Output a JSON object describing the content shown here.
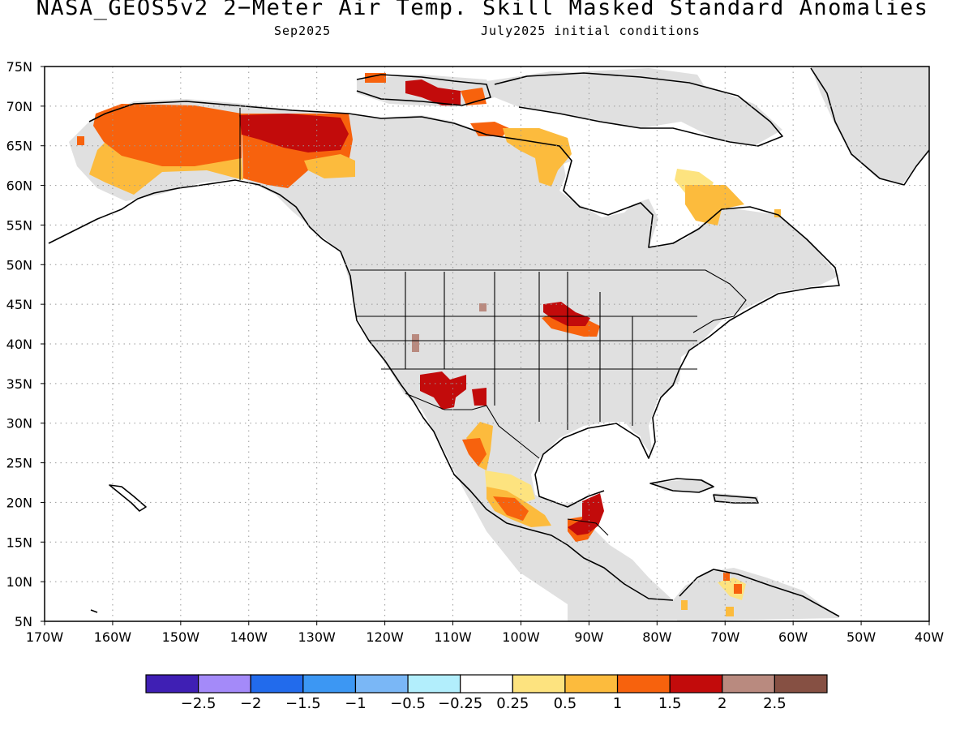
{
  "title": "NASA_GEOS5v2 2−Meter Air Temp. Skill Masked Standard Anomalies",
  "subtitle_left": "Sep2025",
  "subtitle_right": "July2025 initial conditions",
  "map": {
    "projection": "latitude-longitude",
    "lon_range": [
      -170,
      -40
    ],
    "lat_range": [
      5,
      75
    ],
    "lat_labels": [
      "5N",
      "10N",
      "15N",
      "20N",
      "25N",
      "30N",
      "35N",
      "40N",
      "45N",
      "50N",
      "55N",
      "60N",
      "65N",
      "70N",
      "75N"
    ],
    "lon_labels": [
      "170W",
      "160W",
      "150W",
      "140W",
      "130W",
      "120W",
      "110W",
      "100W",
      "90W",
      "80W",
      "70W",
      "60W",
      "50W",
      "40W"
    ],
    "grid": "dotted",
    "land_mask_color": "#e0e0e0",
    "regions": [
      {
        "name": "Alaska",
        "anomaly_class": "0.5 to 1.5"
      },
      {
        "name": "Yukon",
        "anomaly_class": "1.5 to 2"
      },
      {
        "name": "Arctic Archipelago",
        "anomaly_class": "1.5 to 2"
      },
      {
        "name": "Northern Hudson Bay",
        "anomaly_class": "0.5 to 1"
      },
      {
        "name": "Labrador",
        "anomaly_class": "0.25 to 1"
      },
      {
        "name": "Minnesota-Wisconsin",
        "anomaly_class": "1 to 2"
      },
      {
        "name": "Arizona-New Mexico",
        "anomaly_class": "1.5 to 2"
      },
      {
        "name": "Western Mexico",
        "anomaly_class": "0.5 to 1.5"
      },
      {
        "name": "Southern Mexico",
        "anomaly_class": "0.25 to 2"
      },
      {
        "name": "Yucatan-Guatemala",
        "anomaly_class": "1.5 to 2"
      },
      {
        "name": "Venezuela",
        "anomaly_class": "0.25 to 1.5"
      }
    ]
  },
  "colorbar": {
    "colors": [
      "#3f1fb4",
      "#a48af9",
      "#226bec",
      "#3c97f3",
      "#7ab7f6",
      "#b2eefc",
      "#ffffff",
      "#fde37f",
      "#fcbb3d",
      "#f7620d",
      "#c20b0b",
      "#b98a7f",
      "#865043"
    ],
    "labels": [
      "−2.5",
      "−2",
      "−1.5",
      "−1",
      "−0.5",
      "−0.25",
      "0.25",
      "0.5",
      "1",
      "1.5",
      "2",
      "2.5"
    ]
  }
}
